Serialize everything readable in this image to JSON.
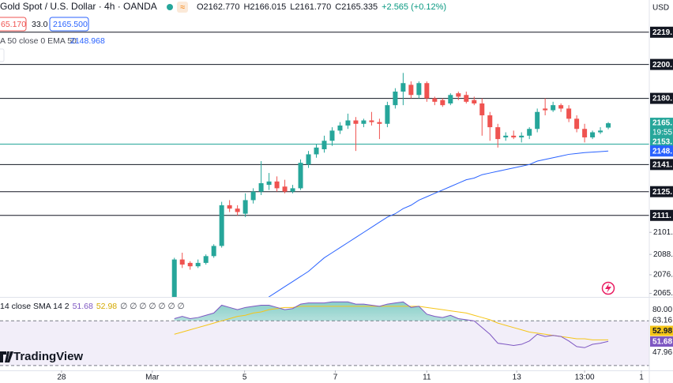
{
  "chart_data": {
    "type": "candlestick",
    "title": "Gold Spot / U.S. Dollar · 4h · OANDA",
    "badge": "≈",
    "ohlc_labels": [
      "O2162.770",
      "H2166.015",
      "L2161.770",
      "C2165.335"
    ],
    "change": "+2.565 (+0.12%)",
    "sell": "65.170",
    "spread": "33.0",
    "buy": "2165.500",
    "indicator_label": "A 50 close 0 EMA 50",
    "indicator_value": "2148.968",
    "currency": "USD",
    "up_color": "#26a69a",
    "down_color": "#ef5350",
    "open": [
      2062,
      2085,
      2083,
      2081,
      2083,
      2087,
      2093,
      2117,
      2115,
      2112,
      2120,
      2125,
      2129,
      2131,
      2128,
      2125,
      2127,
      2141,
      2147,
      2150,
      2155,
      2161,
      2164,
      2167,
      2165,
      2167,
      2166,
      2165,
      2176,
      2184,
      2188,
      2182,
      2189,
      2180,
      2179,
      2177,
      2183,
      2182,
      2179,
      2177,
      2170,
      2163,
      2157,
      2158,
      2157,
      2158,
      2162,
      2174,
      2173,
      2176,
      2174,
      2168,
      2162,
      2157,
      2160,
      2162.77
    ],
    "high": [
      2086,
      2089,
      2084,
      2085,
      2088,
      2094,
      2119,
      2120,
      2117,
      2124,
      2127,
      2143,
      2136,
      2134,
      2132,
      2129,
      2144,
      2149,
      2153,
      2158,
      2163,
      2166,
      2171,
      2169,
      2168,
      2172,
      2168,
      2178,
      2186,
      2195,
      2190,
      2190,
      2190,
      2181,
      2180,
      2183,
      2184,
      2184,
      2181,
      2180,
      2172,
      2165,
      2160,
      2161,
      2160,
      2163,
      2174,
      2180,
      2178,
      2177,
      2176,
      2170,
      2165,
      2161,
      2163,
      2166.015
    ],
    "low": [
      2058,
      2080,
      2079,
      2080,
      2082,
      2086,
      2092,
      2113,
      2111,
      2110,
      2118,
      2123,
      2126,
      2125,
      2124,
      2124,
      2126,
      2139,
      2145,
      2148,
      2152,
      2159,
      2162,
      2149,
      2163,
      2164,
      2156,
      2163,
      2174,
      2176,
      2180,
      2180,
      2178,
      2176,
      2175,
      2176,
      2179,
      2177,
      2176,
      2158,
      2155,
      2151,
      2155,
      2156,
      2154,
      2156,
      2160,
      2170,
      2172,
      2172,
      2166,
      2160,
      2154,
      2156,
      2159,
      2161.77
    ],
    "close": [
      2085,
      2082,
      2081,
      2083,
      2087,
      2093,
      2117,
      2115,
      2113,
      2120,
      2125,
      2130,
      2131,
      2127,
      2125,
      2127,
      2142,
      2147,
      2151,
      2155,
      2161,
      2164,
      2167,
      2165,
      2167,
      2166,
      2165,
      2176,
      2184,
      2189,
      2182,
      2189,
      2180,
      2178,
      2176,
      2182,
      2181,
      2178,
      2177,
      2170,
      2163,
      2156,
      2158,
      2157,
      2158,
      2162,
      2172,
      2173,
      2176,
      2174,
      2168,
      2162,
      2157,
      2160,
      2161,
      2165.335
    ],
    "ema": {
      "color": "#2962ff",
      "values": [
        2025,
        2028,
        2031,
        2034,
        2037,
        2040,
        2044,
        2047,
        2050,
        2053,
        2056,
        2059,
        2063,
        2066,
        2069,
        2072,
        2075,
        2078,
        2082,
        2086,
        2089,
        2092,
        2095,
        2098,
        2101,
        2104,
        2107,
        2110,
        2112,
        2115,
        2117,
        2120,
        2122,
        2124,
        2126,
        2128,
        2130,
        2132,
        2133,
        2135,
        2136,
        2137,
        2138,
        2139,
        2140,
        2141,
        2143,
        2144,
        2145,
        2146,
        2147,
        2147.5,
        2148,
        2148.3,
        2148.6,
        2148.968
      ]
    },
    "ema_axis_label": "2148.",
    "ylim": [
      2062,
      2238
    ],
    "yticks": [
      {
        "value": 2101,
        "label": "2101."
      },
      {
        "value": 2088,
        "label": "2088."
      },
      {
        "value": 2076,
        "label": "2076."
      },
      {
        "value": 2065,
        "label": "2065."
      }
    ],
    "levels": [
      {
        "value": 2219,
        "label": "2219."
      },
      {
        "value": 2200,
        "label": "2200."
      },
      {
        "value": 2180,
        "label": "2180."
      },
      {
        "value": 2141,
        "label": "2141."
      },
      {
        "value": 2125,
        "label": "2125."
      },
      {
        "value": 2111,
        "label": "2111."
      }
    ],
    "level_color": "#131722",
    "price_line": {
      "value": 2153,
      "label": "2153.",
      "color": "#26a69a"
    },
    "last_price": {
      "label": "2165.",
      "time": "19:55"
    },
    "xlim": [
      -22.1,
      60.2
    ],
    "xticks": [
      {
        "value": -14.3,
        "label": "28"
      },
      {
        "value": -2.8,
        "label": "Mar"
      },
      {
        "value": 8.9,
        "label": "5"
      },
      {
        "value": 20.4,
        "label": "7"
      },
      {
        "value": 32,
        "label": "11"
      },
      {
        "value": 43.4,
        "label": "13"
      },
      {
        "value": 52,
        "label": "13:00"
      },
      {
        "value": 59.2,
        "label": "1"
      }
    ],
    "rsi": {
      "header": "14 close SMA 14 2",
      "value_label": "51.68",
      "sma_label": "52.98",
      "extra": "∅ ∅ ∅ ∅ ∅ ∅ ∅",
      "color": "#7e57c2",
      "values": [
        72,
        74,
        72,
        73,
        75,
        77,
        84,
        82,
        80,
        82,
        83,
        84,
        84,
        82,
        80,
        81,
        85,
        86,
        86,
        86,
        87,
        87,
        87,
        85,
        85,
        84,
        83,
        85,
        86,
        87,
        82,
        83,
        76,
        74,
        73,
        75,
        72,
        71,
        70,
        64,
        58,
        50,
        49,
        48,
        49,
        52,
        58,
        56,
        57,
        56,
        52,
        47,
        46,
        49,
        50,
        51.68
      ],
      "sma": {
        "color": "#f5c518",
        "values": [
          58,
          60,
          62,
          64,
          66,
          68,
          70,
          72,
          74,
          75,
          77,
          78,
          80,
          81,
          82,
          82,
          83,
          83,
          83,
          83,
          83,
          83,
          83,
          83,
          83,
          83,
          83,
          83,
          83,
          83,
          83,
          83,
          82,
          81,
          80,
          79,
          78,
          77,
          75,
          73,
          71,
          68,
          66,
          64,
          62,
          60,
          59,
          58,
          57,
          56,
          55,
          54,
          54,
          53,
          53,
          52.98
        ]
      },
      "ylim": [
        25,
        90
      ],
      "band": [
        30,
        70
      ],
      "axis_labels": [
        {
          "label": "80.00"
        },
        {
          "label": "63.16"
        },
        {
          "label": "52.98",
          "color": "#f5c518"
        },
        {
          "label": "51.68",
          "color": "#7e57c2"
        },
        {
          "label": "47.96"
        }
      ]
    },
    "logo": "TradingView"
  }
}
